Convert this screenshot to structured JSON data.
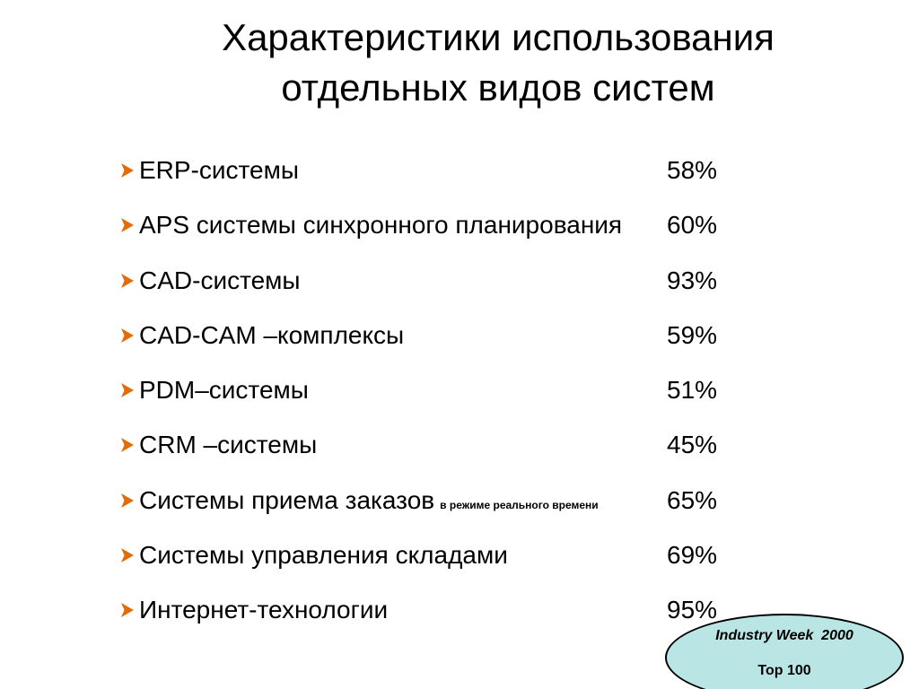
{
  "title": {
    "line1": "Характеристики использования",
    "line2": "отдельных видов систем"
  },
  "colors": {
    "bullet": "#e36c0a",
    "badge_fill": "#b9e6e4",
    "text": "#000000"
  },
  "bullet_icon": "arrow-right-icon",
  "items": [
    {
      "label": "ERP-системы",
      "note": "",
      "value": "58%"
    },
    {
      "label": "APS системы синхронного планирования",
      "note": "",
      "value": "60%"
    },
    {
      "label": "CAD-системы",
      "note": "",
      "value": "93%"
    },
    {
      "label": "CAD-CAM –комплексы",
      "note": "",
      "value": "59%"
    },
    {
      "label": "PDM–системы",
      "note": "",
      "value": "51%"
    },
    {
      "label": "CRM –системы",
      "note": "",
      "value": "45%"
    },
    {
      "label": "Системы приема заказов",
      "note": "в режиме реального времени",
      "value": "65%"
    },
    {
      "label": "Системы управления складами",
      "note": "",
      "value": "69%"
    },
    {
      "label": "Интернет-технологии",
      "note": "",
      "value": "95%"
    }
  ],
  "badge": {
    "source": "Industry Week  2000",
    "rank": "Top 100"
  }
}
